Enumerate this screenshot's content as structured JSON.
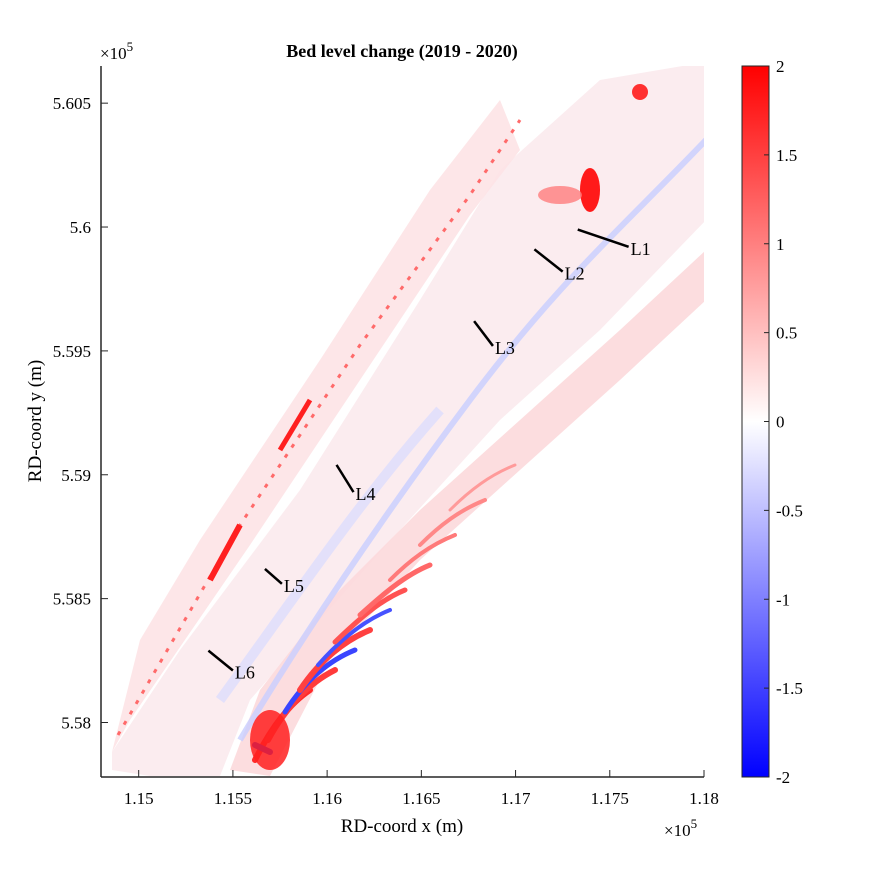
{
  "chart_data": {
    "type": "heatmap",
    "title": "Bed level change (2019 - 2020)",
    "xlabel": "RD-coord x (m)",
    "ylabel": "RD-coord y (m)",
    "x_exponent_label": "×10^5",
    "y_exponent_label": "×10^5",
    "xlim": [
      114800,
      118000
    ],
    "ylim": [
      557780,
      560650
    ],
    "x_ticks": [
      115000,
      115500,
      116000,
      116500,
      117000,
      117500,
      118000
    ],
    "x_tick_labels": [
      "1.15",
      "1.155",
      "1.16",
      "1.165",
      "1.17",
      "1.175",
      "1.18"
    ],
    "y_ticks": [
      558000,
      558500,
      559000,
      559500,
      560000,
      560500
    ],
    "y_tick_labels": [
      "5.58",
      "5.585",
      "5.59",
      "5.595",
      "5.6",
      "5.605"
    ],
    "colorbar": {
      "range": [
        -2,
        2
      ],
      "ticks": [
        -2,
        -1.5,
        -1,
        -0.5,
        0,
        0.5,
        1,
        1.5,
        2
      ],
      "tick_labels": [
        "-2",
        "-1.5",
        "-1",
        "-0.5",
        "0",
        "0.5",
        "1",
        "1.5",
        "2"
      ],
      "colormap": [
        "#0000ff",
        "#ffffff",
        "#ff0000"
      ]
    },
    "transects": [
      {
        "label": "L1",
        "start": [
          117330,
          559990
        ],
        "end": [
          117600,
          559920
        ]
      },
      {
        "label": "L2",
        "start": [
          117100,
          559910
        ],
        "end": [
          117250,
          559820
        ]
      },
      {
        "label": "L3",
        "start": [
          116780,
          559620
        ],
        "end": [
          116880,
          559520
        ]
      },
      {
        "label": "L4",
        "start": [
          116050,
          559040
        ],
        "end": [
          116140,
          558930
        ]
      },
      {
        "label": "L5",
        "start": [
          115670,
          558620
        ],
        "end": [
          115760,
          558560
        ]
      },
      {
        "label": "L6",
        "start": [
          115370,
          558290
        ],
        "end": [
          115500,
          558210
        ]
      }
    ]
  }
}
